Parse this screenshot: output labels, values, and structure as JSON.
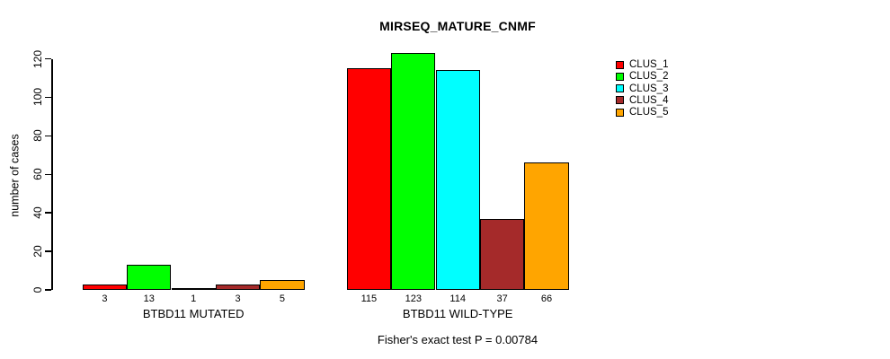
{
  "title": "MIRSEQ_MATURE_CNMF",
  "footer": "Fisher's exact test P = 0.00784",
  "y_axis": {
    "label": "number of cases",
    "ticks": [
      0,
      20,
      40,
      60,
      80,
      100,
      120
    ]
  },
  "x_groups": [
    "BTBD11 MUTATED",
    "BTBD11 WILD-TYPE"
  ],
  "legend": {
    "position": "right",
    "entries": [
      {
        "label": "CLUS_1",
        "color": "#FF0000"
      },
      {
        "label": "CLUS_2",
        "color": "#00FF00"
      },
      {
        "label": "CLUS_3",
        "color": "#00FFFF"
      },
      {
        "label": "CLUS_4",
        "color": "#A52A2A"
      },
      {
        "label": "CLUS_5",
        "color": "#FFA500"
      }
    ]
  },
  "chart_data": {
    "type": "bar",
    "title": "MIRSEQ_MATURE_CNMF",
    "subtitle": "Fisher's exact test P = 0.00784",
    "xlabel": "",
    "ylabel": "number of cases",
    "ylim": [
      0,
      120
    ],
    "yticks": [
      0,
      20,
      40,
      60,
      80,
      100,
      120
    ],
    "grid": false,
    "legend_position": "right",
    "bar_value_labels": true,
    "categories": [
      "BTBD11 MUTATED",
      "BTBD11 WILD-TYPE"
    ],
    "series": [
      {
        "name": "CLUS_1",
        "color": "#FF0000",
        "values": [
          3,
          115
        ]
      },
      {
        "name": "CLUS_2",
        "color": "#00FF00",
        "values": [
          13,
          123
        ]
      },
      {
        "name": "CLUS_3",
        "color": "#00FFFF",
        "values": [
          1,
          114
        ]
      },
      {
        "name": "CLUS_4",
        "color": "#A52A2A",
        "values": [
          3,
          37
        ]
      },
      {
        "name": "CLUS_5",
        "color": "#FFA500",
        "values": [
          5,
          66
        ]
      }
    ]
  }
}
